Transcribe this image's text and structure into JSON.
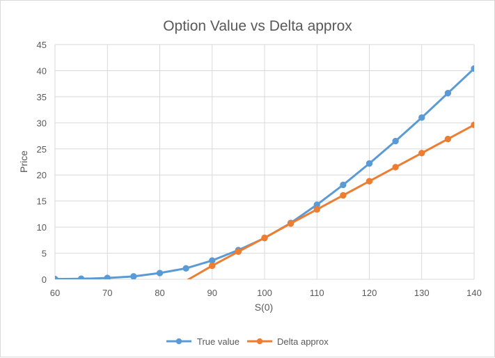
{
  "chart_data": {
    "type": "line",
    "title": "Option Value vs Delta approx",
    "xlabel": "S(0)",
    "ylabel": "Price",
    "x": [
      60,
      65,
      70,
      75,
      80,
      85,
      90,
      95,
      100,
      105,
      110,
      115,
      120,
      125,
      130,
      135,
      140
    ],
    "xlim": [
      60,
      140
    ],
    "ylim": [
      0,
      45
    ],
    "x_ticks": [
      60,
      70,
      80,
      90,
      100,
      110,
      120,
      130,
      140
    ],
    "y_ticks": [
      0,
      5,
      10,
      15,
      20,
      25,
      30,
      35,
      40,
      45
    ],
    "grid": true,
    "legend": "bottom",
    "series": [
      {
        "name": "True value",
        "color": "#5b9bd5",
        "values": [
          0.05,
          0.1,
          0.25,
          0.55,
          1.2,
          2.1,
          3.6,
          5.6,
          7.9,
          10.8,
          14.3,
          18.1,
          22.2,
          26.5,
          31.0,
          35.7,
          40.4
        ]
      },
      {
        "name": "Delta approx",
        "color": "#ed7d31",
        "x": [
          85,
          90,
          95,
          100,
          105,
          110,
          115,
          120,
          125,
          130,
          135,
          140
        ],
        "values": [
          -0.3,
          2.6,
          5.3,
          7.95,
          10.7,
          13.4,
          16.1,
          18.8,
          21.5,
          24.2,
          26.9,
          29.6
        ],
        "markers_from": 90
      }
    ]
  }
}
